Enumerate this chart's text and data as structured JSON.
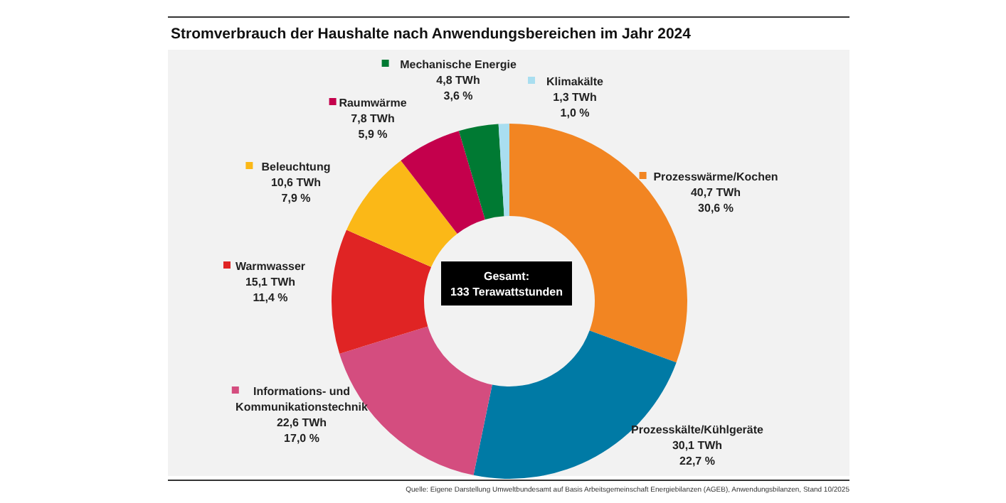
{
  "chart_data": {
    "type": "donut",
    "title": "Stromverbrauch der Haushalte nach Anwendungsbereichen im Jahr 2024",
    "categories": [
      "Prozesswärme/Kochen",
      "Prozesskälte/Kühlgeräte",
      "Informations- und Kommunikationstechnik",
      "Warmwasser",
      "Beleuchtung",
      "Raumwärme",
      "Mechanische Energie",
      "Klimakälte"
    ],
    "values": [
      40.7,
      30.1,
      22.6,
      15.1,
      10.6,
      7.8,
      4.8,
      1.3
    ],
    "colors": [
      "#f28522",
      "#007aa5",
      "#d44d7f",
      "#e02424",
      "#fbb817",
      "#c4004c",
      "#007a33",
      "#a9def0"
    ],
    "value_labels": [
      "40,7 TWh\n30,6 %",
      "30,1 TWh\n22,7 %",
      "22,6 TWh\n17,0 %",
      "15,1 TWh\n11,4 %",
      "10,6 TWh\n7,9 %",
      "7,8 TWh\n5,9 %",
      "4,8 TWh\n3,6 %",
      "1,3 TWh\n1,0 %"
    ],
    "legend": "left",
    "annotations": [
      "Gesamt:\n133  Terawattstunden",
      "Quelle: Eigene Darstellung Umweltbundesamt auf Basis Arbeitsgemeinschaft Energiebilanzen (AGEB), Anwendungsbilanzen, Stand 10/2025"
    ]
  }
}
